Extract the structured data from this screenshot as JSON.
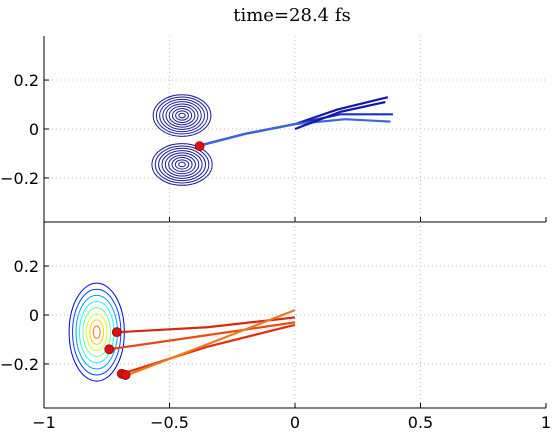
{
  "title": "time=28.4 fs",
  "chart_data": [
    {
      "type": "line",
      "panel": "top",
      "title": "time=28.4 fs",
      "xlim": [
        -1,
        1
      ],
      "ylim": [
        -0.38,
        0.38
      ],
      "x_ticks": [
        -1,
        -0.5,
        0,
        0.5,
        1
      ],
      "y_ticks": [
        0.2,
        0,
        -0.2
      ],
      "y_tick_labels": [
        "0.2",
        "0",
        "−0.2"
      ],
      "grid": true,
      "contours": [
        {
          "center": [
            -0.45,
            0.055
          ],
          "rx_max": 0.115,
          "ry_max": 0.085,
          "levels": 9
        },
        {
          "center": [
            -0.45,
            -0.145
          ],
          "rx_max": 0.12,
          "ry_max": 0.085,
          "levels": 9
        }
      ],
      "trajectories": [
        {
          "points": [
            [
              -0.39,
              -0.07
            ],
            [
              -0.2,
              -0.02
            ],
            [
              0,
              0.02
            ],
            [
              0.17,
              0.08
            ],
            [
              0.37,
              0.13
            ]
          ],
          "color": "#1418a8"
        },
        {
          "points": [
            [
              -0.39,
              -0.07
            ],
            [
              -0.2,
              -0.02
            ],
            [
              0,
              0.02
            ],
            [
              0.18,
              0.06
            ],
            [
              0.39,
              0.06
            ]
          ],
          "color": "#1e2ec8"
        },
        {
          "points": [
            [
              -0.39,
              -0.07
            ],
            [
              -0.2,
              -0.02
            ],
            [
              0,
              0.02
            ],
            [
              0.2,
              0.04
            ],
            [
              0.38,
              0.03
            ]
          ],
          "color": "#3a66e0"
        },
        {
          "points": [
            [
              0,
              0.0
            ],
            [
              0.18,
              0.07
            ],
            [
              0.36,
              0.11
            ]
          ],
          "color": "#1418a8"
        }
      ],
      "markers": [
        [
          -0.38,
          -0.07
        ]
      ]
    },
    {
      "type": "line",
      "panel": "bottom",
      "xlim": [
        -1,
        1
      ],
      "ylim": [
        -0.38,
        0.38
      ],
      "x_ticks": [
        -1,
        -0.5,
        0,
        0.5,
        1
      ],
      "x_tick_labels": [
        "−1",
        "−0.5",
        "0",
        "0.5",
        "1"
      ],
      "y_ticks": [
        0.2,
        0,
        -0.2
      ],
      "y_tick_labels": [
        "0.2",
        "0",
        "−0.2"
      ],
      "grid": true,
      "contours": [
        {
          "center": [
            -0.79,
            -0.07
          ],
          "rx_max": 0.11,
          "ry_max": 0.2,
          "levels": 8
        }
      ],
      "trajectories": [
        {
          "points": [
            [
              -0.7,
              -0.07
            ],
            [
              -0.35,
              -0.05
            ],
            [
              0,
              -0.01
            ]
          ],
          "color": "#d42a0e"
        },
        {
          "points": [
            [
              -0.74,
              -0.14
            ],
            [
              -0.4,
              -0.09
            ],
            [
              0,
              -0.03
            ]
          ],
          "color": "#e84a12"
        },
        {
          "points": [
            [
              -0.69,
              -0.24
            ],
            [
              -0.35,
              -0.13
            ],
            [
              0,
              -0.04
            ]
          ],
          "color": "#e03010"
        },
        {
          "points": [
            [
              -0.68,
              -0.25
            ],
            [
              -0.35,
              -0.12
            ],
            [
              0,
              0.02
            ]
          ],
          "color": "#f07814"
        }
      ],
      "markers": [
        [
          -0.71,
          -0.07
        ],
        [
          -0.74,
          -0.14
        ],
        [
          -0.69,
          -0.24
        ],
        [
          -0.675,
          -0.245
        ]
      ]
    }
  ]
}
